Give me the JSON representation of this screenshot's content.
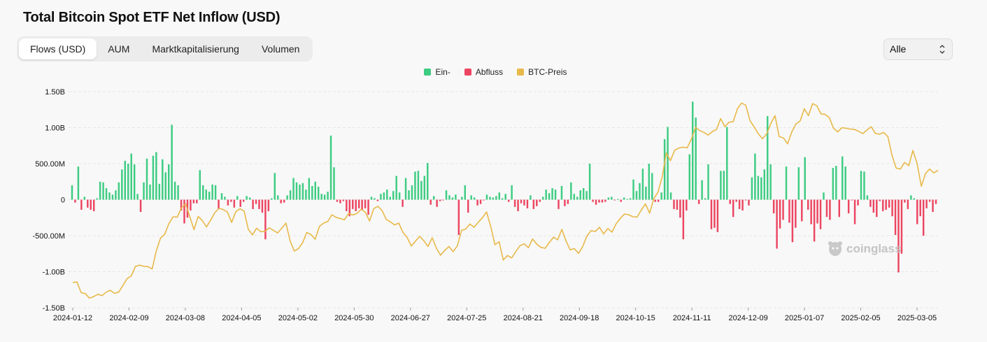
{
  "title": "Total Bitcoin Spot ETF Net Inflow (USD)",
  "tabs": [
    {
      "label": "Flows (USD)",
      "active": true
    },
    {
      "label": "AUM",
      "active": false
    },
    {
      "label": "Marktkapitalisierung",
      "active": false
    },
    {
      "label": "Volumen",
      "active": false
    }
  ],
  "range_select": {
    "value": "Alle"
  },
  "watermark": "coinglass",
  "colors": {
    "inflow": "#3dcc82",
    "outflow": "#ec4561",
    "price": "#e8b94a"
  },
  "chart_data": {
    "type": "bar",
    "legend": [
      {
        "name": "Ein-",
        "color": "#3dcc82"
      },
      {
        "name": "Abfluss",
        "color": "#ec4561"
      },
      {
        "name": "BTC-Preis",
        "color": "#e8b94a"
      }
    ],
    "ylim": [
      -1500000000,
      1500000000
    ],
    "y_ticks": [
      {
        "value": 1500000000,
        "label": "1.50B"
      },
      {
        "value": 1000000000,
        "label": "1.00B"
      },
      {
        "value": 500000000,
        "label": "500.00M"
      },
      {
        "value": 0,
        "label": "0"
      },
      {
        "value": -500000000,
        "label": "-500.00M"
      },
      {
        "value": -1000000000,
        "label": "-1.00B"
      },
      {
        "value": -1500000000,
        "label": "-1.50B"
      }
    ],
    "x_ticks": [
      "2024-01-12",
      "2024-02-09",
      "2024-03-08",
      "2024-04-05",
      "2024-05-02",
      "2024-05-30",
      "2024-06-27",
      "2024-07-25",
      "2024-08-21",
      "2024-09-18",
      "2024-10-15",
      "2024-11-11",
      "2024-12-09",
      "2025-01-07",
      "2025-02-05",
      "2025-03-05"
    ],
    "grid": true,
    "legend_position": "top-center",
    "series": [
      {
        "name": "Ein- / Abfluss",
        "unit": "USD (millions)",
        "values": [
          200,
          -40,
          460,
          -140,
          40,
          -110,
          -140,
          -160,
          20,
          250,
          240,
          160,
          100,
          70,
          130,
          240,
          420,
          540,
          500,
          640,
          490,
          80,
          -170,
          240,
          570,
          210,
          610,
          660,
          220,
          560,
          380,
          490,
          1040,
          250,
          200,
          -150,
          -330,
          -250,
          -150,
          -50,
          -50,
          410,
          200,
          140,
          110,
          210,
          200,
          -130,
          90,
          40,
          -80,
          -30,
          -110,
          50,
          -100,
          -30,
          50,
          30,
          -130,
          -60,
          -130,
          -180,
          -550,
          -160,
          20,
          370,
          60,
          -50,
          -40,
          60,
          130,
          300,
          240,
          210,
          230,
          140,
          300,
          190,
          250,
          180,
          80,
          70,
          110,
          890,
          450,
          -30,
          -50,
          -20,
          -160,
          -230,
          -130,
          -160,
          -120,
          -140,
          -120,
          -210,
          40,
          20,
          -20,
          80,
          100,
          140,
          40,
          120,
          330,
          100,
          -100,
          300,
          130,
          200,
          390,
          400,
          260,
          330,
          510,
          -70,
          50,
          -100,
          -20,
          -10,
          130,
          60,
          30,
          70,
          -490,
          40,
          200,
          -180,
          60,
          30,
          -80,
          -60,
          -10,
          70,
          40,
          30,
          50,
          100,
          20,
          80,
          -30,
          200,
          -100,
          -160,
          -50,
          -80,
          -120,
          60,
          -130,
          -90,
          -30,
          40,
          140,
          90,
          160,
          140,
          -130,
          190,
          -90,
          -60,
          240,
          80,
          40,
          130,
          160,
          120,
          500,
          -30,
          -70,
          -40,
          -40,
          -30,
          30,
          40,
          -10,
          10,
          -30,
          30,
          10,
          20,
          280,
          120,
          230,
          430,
          180,
          500,
          370,
          -30,
          -30,
          100,
          840,
          1010,
          100,
          -130,
          -140,
          -250,
          -550,
          -150,
          630,
          1360,
          1140,
          -60,
          270,
          20,
          490,
          -410,
          -390,
          -450,
          400,
          400,
          1010,
          -60,
          -240,
          -30,
          -130,
          -150,
          -10,
          -80,
          310,
          640,
          330,
          310,
          420,
          1160,
          490,
          -190,
          -680,
          -400,
          -280,
          460,
          -320,
          -590,
          -390,
          450,
          -300,
          590,
          -140,
          -340,
          -580,
          -330,
          -410,
          100,
          -240,
          -280,
          440,
          470,
          -240,
          600,
          460,
          -190,
          -10,
          -340,
          -80,
          400,
          390,
          60,
          -100,
          -180,
          -240,
          -20,
          -160,
          -140,
          -110,
          -230,
          -490,
          -1010,
          -750,
          -40,
          -130,
          60,
          20,
          -340,
          -230,
          -500,
          -120,
          -30,
          -170,
          -60
        ]
      },
      {
        "name": "BTC-Preis",
        "unit": "USD",
        "values": [
          46400,
          46600,
          43000,
          42700,
          41200,
          41700,
          42500,
          42000,
          43200,
          43800,
          42800,
          43200,
          45400,
          47700,
          48600,
          51800,
          52200,
          51800,
          51700,
          50900,
          57000,
          61200,
          62500,
          66000,
          68300,
          68200,
          71300,
          72600,
          68400,
          64000,
          68400,
          67000,
          64900,
          67200,
          69700,
          71100,
          70700,
          69900,
          66400,
          70000,
          71000,
          70200,
          64100,
          62300,
          64500,
          63300,
          63500,
          64600,
          63800,
          62900,
          64500,
          66200,
          60300,
          56900,
          57700,
          59700,
          63100,
          62400,
          60800,
          65100,
          66200,
          66700,
          69000,
          68100,
          67700,
          67300,
          69400,
          68900,
          69400,
          70800,
          69800,
          66900,
          71000,
          71800,
          70400,
          67400,
          66600,
          65600,
          66200,
          63100,
          61400,
          58600,
          60200,
          61800,
          60300,
          58400,
          61300,
          57800,
          55500,
          57100,
          58400,
          56700,
          58600,
          63800,
          64200,
          65900,
          64800,
          66500,
          68000,
          69900,
          65000,
          59000,
          60000,
          53900,
          55400,
          54600,
          56700,
          58700,
          59300,
          58000,
          60900,
          59200,
          58100,
          57800,
          59700,
          61500,
          60600,
          64100,
          60300,
          57300,
          57700,
          56100,
          58400,
          61900,
          63700,
          63400,
          64800,
          62600,
          64400,
          63200,
          66000,
          67800,
          69200,
          69000,
          68300,
          68200,
          70500,
          72600,
          69500,
          74300,
          76500,
          81600,
          89600,
          87000,
          90500,
          91200,
          91500,
          91300,
          94200,
          98100,
          97000,
          96400,
          95500,
          96700,
          97400,
          101000,
          98300,
          99800,
          100000,
          104300,
          106200,
          105500,
          100400,
          98200,
          96000,
          94300,
          95900,
          99400,
          102000,
          95000,
          94600,
          92600,
          96500,
          99200,
          100200,
          104300,
          102000,
          106000,
          105300,
          102600,
          102400,
          101300,
          97800,
          96600,
          98000,
          97800,
          97500,
          97400,
          96800,
          96000,
          97200,
          98300,
          96100,
          95800,
          96400,
          95000,
          88700,
          84500,
          84200,
          86400,
          85300,
          90400,
          86000,
          78500,
          82700,
          84200,
          82900,
          83800
        ]
      }
    ],
    "price_axis": {
      "min": 38000,
      "max": 110000
    }
  }
}
